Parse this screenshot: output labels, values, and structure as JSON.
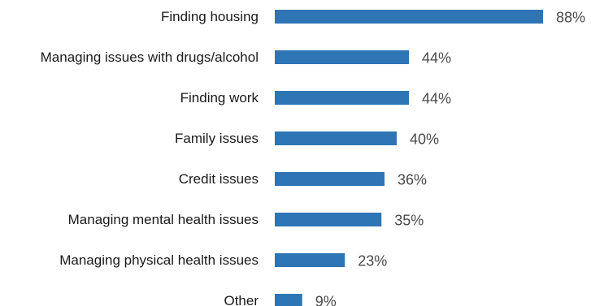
{
  "chart_data": {
    "type": "bar",
    "orientation": "horizontal",
    "categories": [
      "Finding housing",
      "Managing issues with drugs/alcohol",
      "Finding work",
      "Family issues",
      "Credit issues",
      "Managing mental health issues",
      "Managing physical health issues",
      "Other"
    ],
    "values": [
      88,
      44,
      44,
      40,
      36,
      35,
      23,
      9
    ],
    "value_labels": [
      "88%",
      "44%",
      "44%",
      "40%",
      "36%",
      "35%",
      "23%",
      "9%"
    ],
    "unit": "%",
    "xlim": [
      0,
      100
    ],
    "grid": false,
    "legend": "none",
    "bar_color": "#2e75b6"
  }
}
